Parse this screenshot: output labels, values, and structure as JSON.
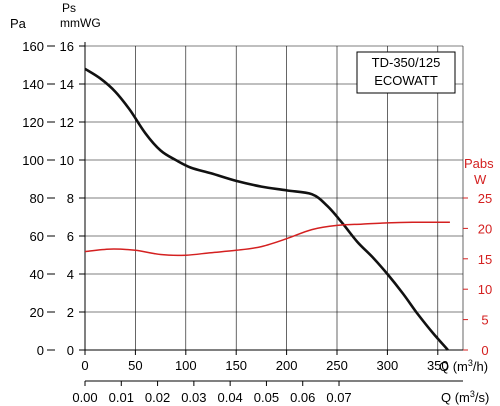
{
  "chart_data": {
    "type": "line",
    "legend_box": [
      "TD-350/125",
      "ECOWATT"
    ],
    "legend_placement": "top-right",
    "grid": true,
    "axes": {
      "pa": {
        "label": "Pa",
        "range": [
          0,
          160
        ],
        "ticks": [
          0,
          20,
          40,
          60,
          80,
          100,
          120,
          140,
          160
        ]
      },
      "ps": {
        "label_line1": "Ps",
        "label_line2": "mmWG",
        "range": [
          0,
          16
        ],
        "ticks": [
          0,
          2,
          4,
          6,
          8,
          10,
          12,
          14,
          16
        ]
      },
      "power": {
        "label_line1": "Pabs",
        "label_line2": "W",
        "range": [
          0,
          25
        ],
        "ticks": [
          0,
          5,
          10,
          15,
          20,
          25
        ],
        "color": "#d42020"
      },
      "q_m3h": {
        "label_text": "Q (m",
        "label_sup": "3",
        "label_tail": "/h)",
        "range": [
          0,
          375
        ],
        "ticks": [
          0,
          50,
          100,
          150,
          200,
          250,
          300,
          350
        ]
      },
      "q_m3s": {
        "label_text": "Q (m",
        "label_sup": "3",
        "label_tail": "/s)",
        "tick_labels": [
          "0.00",
          "0.01",
          "0.02",
          "0.03",
          "0.04",
          "0.05",
          "0.06",
          "0.07"
        ],
        "tick_values": [
          0,
          0.01,
          0.02,
          0.03,
          0.04,
          0.05,
          0.06,
          0.07
        ]
      }
    },
    "series": [
      {
        "color": "#111111",
        "axis": "pa",
        "x": [
          0,
          15,
          30,
          45,
          60,
          75,
          90,
          105,
          125,
          150,
          175,
          200,
          225,
          240,
          255,
          270,
          285,
          300,
          315,
          330,
          345,
          360
        ],
        "y": [
          148,
          143,
          136,
          126,
          114,
          105,
          100,
          96,
          93,
          89,
          86,
          84,
          82,
          76,
          67,
          57,
          49,
          40,
          30,
          19,
          9,
          0
        ]
      },
      {
        "color": "#d42020",
        "axis": "power",
        "x": [
          0,
          25,
          50,
          75,
          100,
          125,
          150,
          175,
          200,
          225,
          250,
          275,
          300,
          325,
          350,
          362
        ],
        "y": [
          16.2,
          16.6,
          16.4,
          15.7,
          15.6,
          16.0,
          16.4,
          17.0,
          18.3,
          19.8,
          20.5,
          20.7,
          20.9,
          21.0,
          21.0,
          21.0
        ]
      }
    ]
  }
}
